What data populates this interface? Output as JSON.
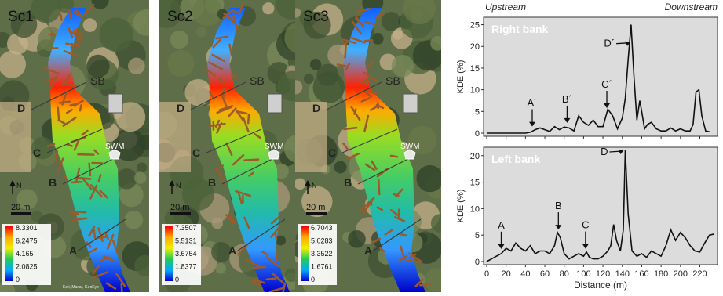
{
  "maps": [
    {
      "title": "Sc1",
      "legend": [
        "8.3301",
        "6.2475",
        "4.165",
        "2.0825",
        "0"
      ],
      "credit": "Esri, Maxar, GeoEye"
    },
    {
      "title": "Sc2",
      "legend": [
        "7.3507",
        "5.5131",
        "3.6754",
        "1.8377",
        "0"
      ]
    },
    {
      "title": "Sc3",
      "legend": [
        "6.7043",
        "5.0283",
        "3.3522",
        "1.6761",
        "0"
      ]
    }
  ],
  "map_labels": {
    "sb": "SB",
    "swm": "SWM",
    "north": "N",
    "scale": "20 m",
    "sections": [
      "A",
      "B",
      "C",
      "D"
    ]
  },
  "colors": {
    "colorbar": [
      "#ff0000",
      "#ffaa00",
      "#eeee00",
      "#22cc55",
      "#00aaff",
      "#0000cc"
    ],
    "wood": "#9c5a2a",
    "line": "#3c3c3c"
  },
  "chart_data": [
    {
      "type": "line",
      "title": "Right bank",
      "ylabel": "KDE (%)",
      "header_left": "Upstream",
      "header_right": "Downstream",
      "ylim": [
        0,
        26
      ],
      "yticks": [
        0,
        5,
        10,
        15,
        20,
        25
      ],
      "x": [
        0,
        10,
        20,
        30,
        40,
        45,
        50,
        55,
        60,
        65,
        70,
        75,
        80,
        85,
        90,
        95,
        100,
        105,
        110,
        115,
        120,
        125,
        130,
        135,
        140,
        143,
        146,
        149,
        152,
        155,
        158,
        160,
        163,
        166,
        170,
        175,
        180,
        185,
        190,
        195,
        200,
        205,
        210,
        213,
        216,
        219,
        222,
        226,
        230
      ],
      "y": [
        0,
        0,
        0,
        0,
        0,
        0.2,
        0.8,
        1.2,
        0.8,
        0.4,
        1.5,
        0.8,
        1.4,
        1.2,
        0.5,
        4,
        2.5,
        1.8,
        3,
        1.5,
        1.5,
        5.5,
        4,
        1,
        3.5,
        8,
        17,
        25,
        13,
        3,
        7.5,
        5,
        1,
        2,
        2.5,
        1,
        0.5,
        0.5,
        1.2,
        0.5,
        1,
        0.5,
        0.5,
        2,
        9.5,
        10,
        4,
        0.5,
        0.3
      ],
      "annotations": [
        {
          "label": "A´",
          "x": 47
        },
        {
          "label": "B´",
          "x": 83
        },
        {
          "label": "C´",
          "x": 124
        },
        {
          "label": "D´",
          "x": 150
        }
      ]
    },
    {
      "type": "line",
      "title": "Left bank",
      "xlabel": "Distance (m)",
      "ylabel": "KDE (%)",
      "xlim": [
        0,
        235
      ],
      "xticks": [
        0,
        20,
        40,
        60,
        80,
        100,
        120,
        140,
        160,
        180,
        200,
        220
      ],
      "ylim": [
        0,
        21
      ],
      "yticks": [
        0,
        5,
        10,
        15,
        20
      ],
      "x": [
        0,
        5,
        10,
        15,
        20,
        25,
        30,
        35,
        40,
        45,
        50,
        55,
        60,
        65,
        70,
        73,
        76,
        80,
        85,
        90,
        95,
        100,
        103,
        106,
        110,
        115,
        120,
        125,
        128,
        131,
        134,
        138,
        141,
        143,
        146,
        150,
        155,
        160,
        165,
        170,
        175,
        180,
        185,
        190,
        195,
        200,
        205,
        210,
        215,
        220,
        225,
        230,
        235
      ],
      "y": [
        0,
        0.5,
        1,
        1.5,
        2.5,
        2,
        3.5,
        2.5,
        2,
        3,
        1.5,
        2,
        2,
        1.5,
        3,
        5.5,
        4.5,
        1.5,
        0.5,
        1,
        1.5,
        1,
        1.8,
        0.8,
        0.5,
        0.5,
        1,
        2,
        3,
        7,
        4,
        2,
        6,
        21,
        9,
        2,
        1,
        1.5,
        0.8,
        2,
        1.5,
        1,
        3,
        6,
        4,
        5.5,
        4.5,
        3,
        2,
        1.8,
        3.5,
        5,
        5.2
      ],
      "annotations": [
        {
          "label": "A",
          "x": 15
        },
        {
          "label": "B",
          "x": 74
        },
        {
          "label": "C",
          "x": 102
        },
        {
          "label": "D",
          "x": 143
        }
      ]
    }
  ]
}
